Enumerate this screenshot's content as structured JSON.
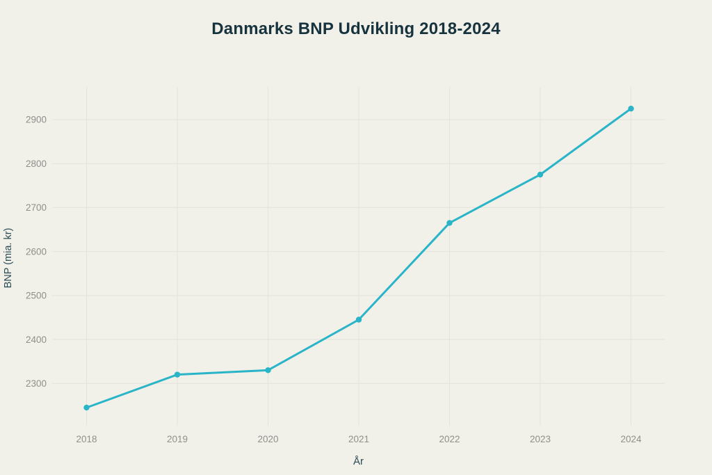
{
  "page": {
    "background_color": "#f1f0e9"
  },
  "chart_data": {
    "type": "line",
    "title": "Danmarks BNP Udvikling 2018-2024",
    "xlabel": "År",
    "ylabel": "BNP (mia. kr)",
    "categories": [
      "2018",
      "2019",
      "2020",
      "2021",
      "2022",
      "2023",
      "2024"
    ],
    "series": [
      {
        "name": "BNP",
        "values": [
          2245,
          2320,
          2330,
          2445,
          2665,
          2775,
          2925
        ]
      }
    ],
    "yticks": [
      2300,
      2400,
      2500,
      2600,
      2700,
      2800,
      2900
    ],
    "ylim": [
      2205,
      2975
    ],
    "grid": true,
    "legend": "none",
    "marker": "circle",
    "colors": {
      "line": "#2ab4c8",
      "marker": "#2ab4c8",
      "grid": "#e3e2db",
      "title": "#16333e",
      "axis_title": "#2b4d55",
      "tick_label": "#8f8f8b"
    }
  }
}
